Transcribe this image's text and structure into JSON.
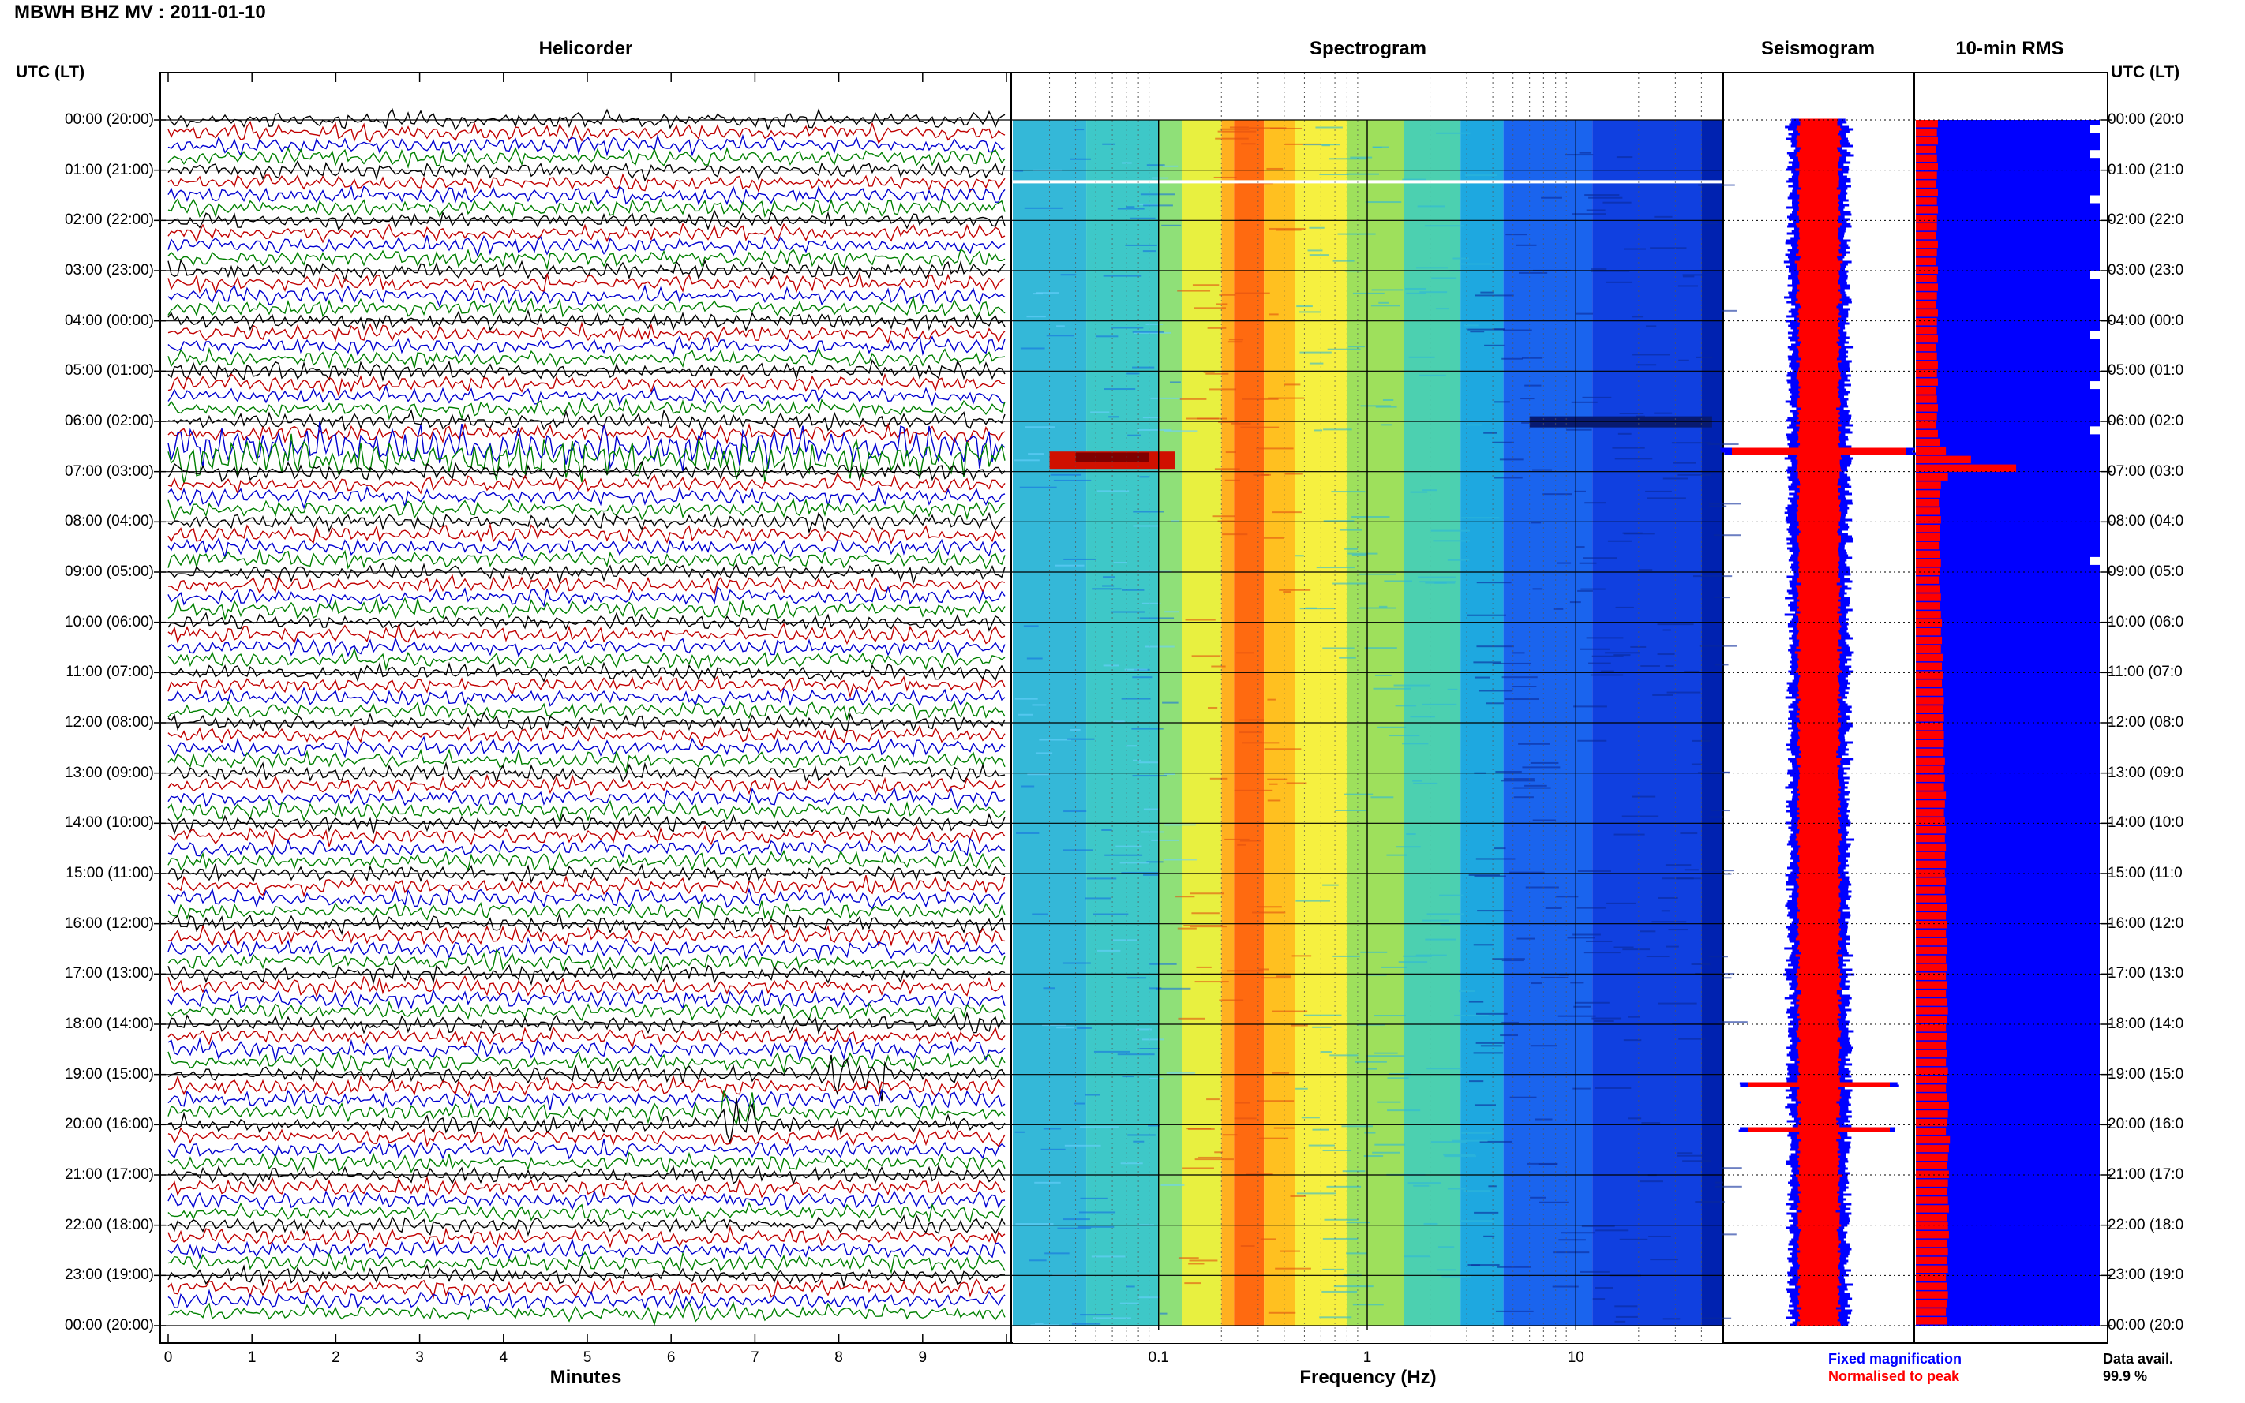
{
  "header": {
    "title": "MBWH BHZ MV : 2011-01-10"
  },
  "panels": {
    "helicorder": "Helicorder",
    "spectrogram": "Spectrogram",
    "seismogram": "Seismogram",
    "rms": "10-min RMS"
  },
  "axis_corner": {
    "left": "UTC (LT)",
    "right": "UTC (LT)"
  },
  "time_ticks": [
    "00:00 (20:00)",
    "01:00 (21:00)",
    "02:00 (22:00)",
    "03:00 (23:00)",
    "04:00 (00:00)",
    "05:00 (01:00)",
    "06:00 (02:00)",
    "07:00 (03:00)",
    "08:00 (04:00)",
    "09:00 (05:00)",
    "10:00 (06:00)",
    "11:00 (07:00)",
    "12:00 (08:00)",
    "13:00 (09:00)",
    "14:00 (10:00)",
    "15:00 (11:00)",
    "16:00 (12:00)",
    "17:00 (13:00)",
    "18:00 (14:00)",
    "19:00 (15:00)",
    "20:00 (16:00)",
    "21:00 (17:00)",
    "22:00 (18:00)",
    "23:00 (19:00)",
    "00:00 (20:00)"
  ],
  "right_time_ticks": [
    "00:00 (20:0",
    "01:00 (21:0",
    "02:00 (22:0",
    "03:00 (23:0",
    "04:00 (00:0",
    "05:00 (01:0",
    "06:00 (02:0",
    "07:00 (03:0",
    "08:00 (04:0",
    "09:00 (05:0",
    "10:00 (06:0",
    "11:00 (07:0",
    "12:00 (08:0",
    "13:00 (09:0",
    "14:00 (10:0",
    "15:00 (11:0",
    "16:00 (12:0",
    "17:00 (13:0",
    "18:00 (14:0",
    "19:00 (15:0",
    "20:00 (16:0",
    "21:00 (17:0",
    "22:00 (18:0",
    "23:00 (19:0",
    "00:00 (20:0"
  ],
  "helicorder_axis": {
    "label": "Minutes",
    "ticks": [
      "0",
      "1",
      "2",
      "3",
      "4",
      "5",
      "6",
      "7",
      "8",
      "9"
    ]
  },
  "spectrogram_axis": {
    "label": "Frequency (Hz)",
    "ticks": [
      "0.1",
      "1",
      "10"
    ]
  },
  "legend": {
    "fixed": "Fixed magnification",
    "normalised": "Normalised to peak",
    "fixed_color": "#0000ff",
    "normalised_color": "#ff0000"
  },
  "data_availability": {
    "label": "Data avail.",
    "value": "99.9 %"
  },
  "colors": {
    "trace_cycle": [
      "#000000",
      "#c00000",
      "#0000d0",
      "#008000"
    ],
    "rms_fixed": "#0000ff",
    "rms_normalised": "#ff0000",
    "spectrogram_scale": [
      "#000066",
      "#0000ff",
      "#00ffff",
      "#ffff00",
      "#ff8000",
      "#ff0000",
      "#800000"
    ]
  },
  "chart_data": [
    {
      "type": "line",
      "name_panel": "Helicorder",
      "x_range_minutes": [
        0,
        10
      ],
      "hours": 24,
      "events": [
        {
          "utc_hour": 1.0,
          "minute": 2.3,
          "description_visible": false
        },
        {
          "utc_hour": 6.6,
          "minute": 0.0,
          "duration_minutes": 10
        },
        {
          "utc_hour": 19.0,
          "minute": 8.2
        },
        {
          "utc_hour": 19.9,
          "minute": 6.8
        }
      ]
    },
    {
      "type": "heatmap",
      "name_panel": "Spectrogram",
      "x_scale": "log",
      "x_range_hz": [
        0.02,
        50
      ],
      "dominant_band_hz": [
        0.2,
        0.35
      ]
    },
    {
      "type": "area",
      "name_panel": "10-min RMS",
      "normalised_relative_level": [
        0.22,
        0.21,
        0.22,
        0.2,
        0.21,
        0.22,
        0.21,
        0.2,
        0.22,
        0.21,
        0.22,
        0.21,
        0.21,
        0.2,
        0.22,
        0.21,
        0.2,
        0.22,
        0.21,
        0.22,
        0.21,
        0.2,
        0.22,
        0.21,
        0.21,
        0.22,
        0.2,
        0.21,
        0.22,
        0.21,
        0.22,
        0.2,
        0.21,
        0.22,
        0.21,
        0.2,
        0.22,
        0.24,
        0.3,
        0.55,
        1.0,
        0.32,
        0.25,
        0.24,
        0.23,
        0.24,
        0.25,
        0.24,
        0.24,
        0.23,
        0.24,
        0.25,
        0.24,
        0.23,
        0.24,
        0.25,
        0.24,
        0.25,
        0.26,
        0.25,
        0.26,
        0.25,
        0.27,
        0.26,
        0.27,
        0.26,
        0.27,
        0.28,
        0.27,
        0.28,
        0.27,
        0.28,
        0.28,
        0.27,
        0.29,
        0.28,
        0.29,
        0.28,
        0.3,
        0.29,
        0.28,
        0.29,
        0.3,
        0.29,
        0.3,
        0.29,
        0.3,
        0.29,
        0.3,
        0.29,
        0.3,
        0.31,
        0.3,
        0.31,
        0.3,
        0.31,
        0.31,
        0.3,
        0.31,
        0.3,
        0.31,
        0.3,
        0.31,
        0.32,
        0.31,
        0.3,
        0.31,
        0.3,
        0.31,
        0.3,
        0.32,
        0.31,
        0.3,
        0.31,
        0.33,
        0.32,
        0.31,
        0.3,
        0.34,
        0.33,
        0.32,
        0.31,
        0.33,
        0.32,
        0.31,
        0.32,
        0.33,
        0.31,
        0.32,
        0.33,
        0.31,
        0.32,
        0.31,
        0.32,
        0.3,
        0.31,
        0.32,
        0.31,
        0.3,
        0.31
      ]
    }
  ]
}
